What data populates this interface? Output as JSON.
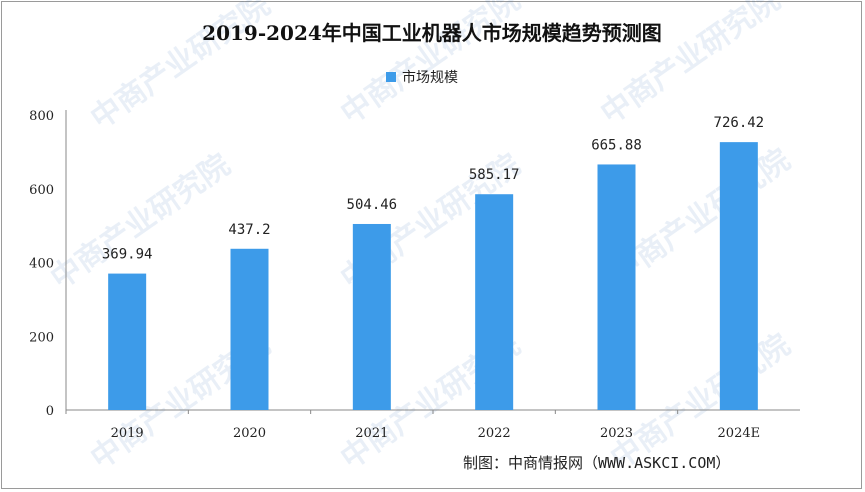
{
  "chart_data": {
    "type": "bar",
    "title": "2019-2024年中国工业机器人市场规模趋势预测图",
    "categories": [
      "2019",
      "2020",
      "2021",
      "2022",
      "2023",
      "2024E"
    ],
    "series": [
      {
        "name": "市场规模",
        "values": [
          369.94,
          437.2,
          504.46,
          585.17,
          665.88,
          726.42
        ],
        "labels": [
          "369.94",
          "437.2",
          "504.46",
          "585.17",
          "665.88",
          "726.42"
        ],
        "color": "#3d9be9"
      }
    ],
    "ylim": [
      0,
      800
    ],
    "yticks": [
      0,
      200,
      400,
      600,
      800
    ],
    "grid": false,
    "legend": "top-center"
  },
  "source": "制图：中商情报网（WWW.ASKCI.COM）",
  "watermark": {
    "text": "中商产业研究院",
    "color": "#2f6fb5"
  }
}
